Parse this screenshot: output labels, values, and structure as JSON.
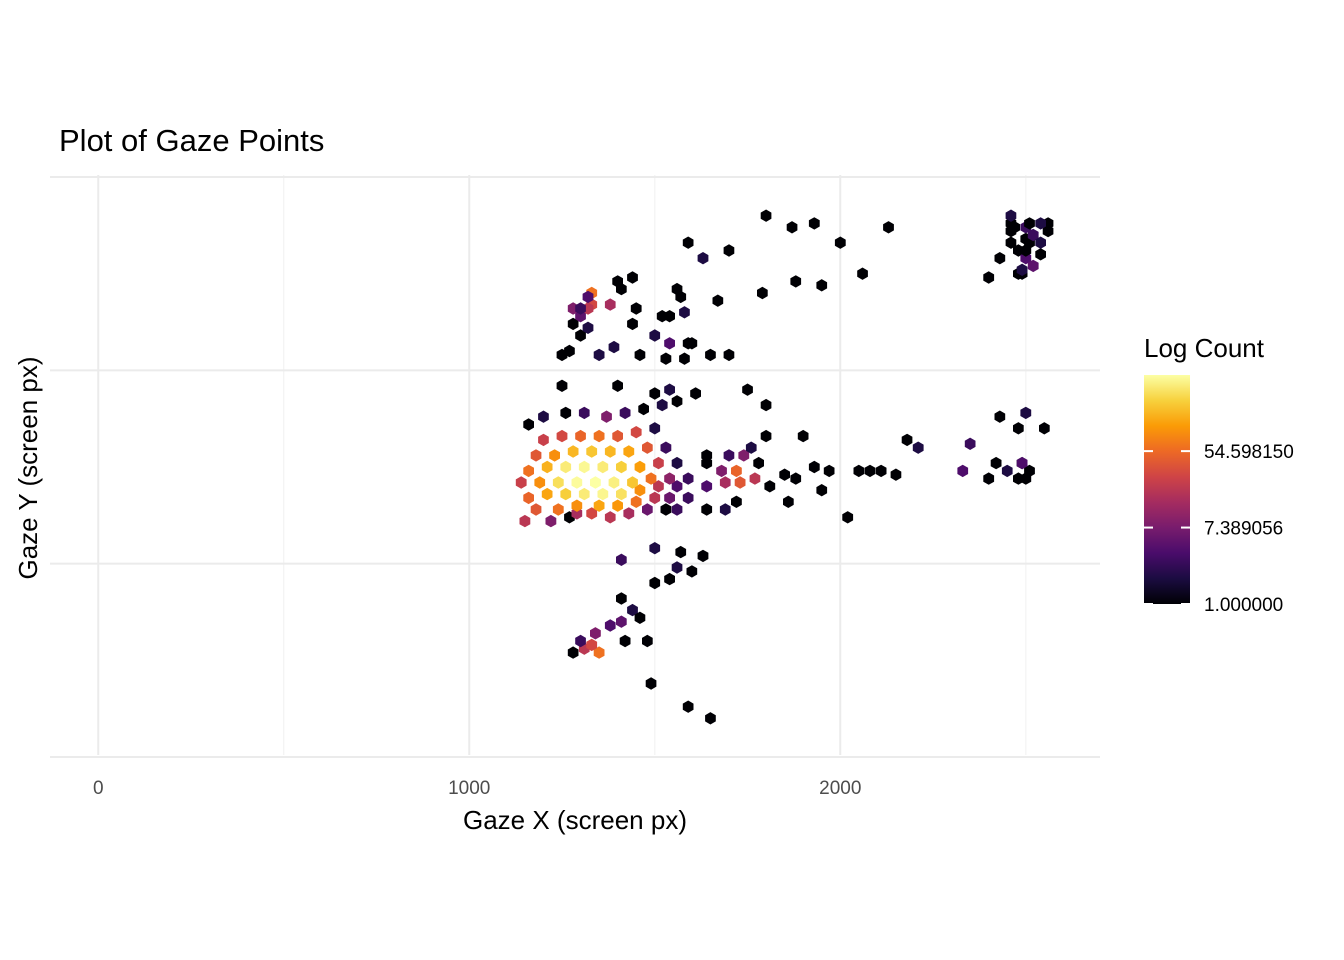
{
  "chart_data": {
    "type": "heatmap",
    "subtype": "hexbin",
    "title": "Plot of Gaze Points",
    "xlabel": "Gaze X (screen px)",
    "ylabel": "Gaze Y (screen px)",
    "xlim": [
      -130,
      2700
    ],
    "ylim": [
      0,
      1500
    ],
    "x_ticks": [
      0,
      1000,
      2000
    ],
    "x_tick_labels": [
      "0",
      "1000",
      "2000"
    ],
    "y_ticks": [
      0,
      500,
      1000,
      1500
    ],
    "y_tick_labels": [
      "",
      "",
      "",
      ""
    ],
    "grid": true,
    "legend": {
      "title": "Log Count",
      "position": "right",
      "scale": "log",
      "colormap": "inferno",
      "range": [
        1,
        400
      ],
      "breaks": [
        1.0,
        7.389056,
        54.59815
      ],
      "labels": [
        "1.000000",
        "7.389056",
        "54.598150"
      ]
    },
    "colors": {
      "gradient": [
        "#000004",
        "#1b0c41",
        "#4a0c6b",
        "#781c6d",
        "#a52c60",
        "#cf4446",
        "#ed6925",
        "#fb9b06",
        "#f7d13d",
        "#fcffa4"
      ]
    },
    "points": [
      [
        1350,
        1230,
        60
      ],
      [
        1310,
        1220,
        20
      ],
      [
        1330,
        1210,
        30
      ],
      [
        1280,
        1230,
        1
      ],
      [
        1340,
        1180,
        8
      ],
      [
        1300,
        1200,
        3
      ],
      [
        1410,
        1150,
        5
      ],
      [
        1380,
        1160,
        4
      ],
      [
        1440,
        1120,
        2
      ],
      [
        1410,
        1090,
        1
      ],
      [
        1590,
        1370,
        1
      ],
      [
        1650,
        1400,
        1
      ],
      [
        1490,
        1310,
        1
      ],
      [
        1420,
        1200,
        1
      ],
      [
        1480,
        1200,
        1
      ],
      [
        1460,
        1140,
        1
      ],
      [
        1500,
        1050,
        1
      ],
      [
        1540,
        1040,
        1
      ],
      [
        1560,
        1010,
        2
      ],
      [
        1600,
        1020,
        1
      ],
      [
        1630,
        980,
        1
      ],
      [
        1570,
        970,
        1
      ],
      [
        1410,
        990,
        3
      ],
      [
        1500,
        960,
        2
      ],
      [
        1150,
        890,
        20
      ],
      [
        1220,
        890,
        8
      ],
      [
        1270,
        880,
        1
      ],
      [
        1290,
        870,
        15
      ],
      [
        1330,
        870,
        30
      ],
      [
        1380,
        880,
        20
      ],
      [
        1430,
        870,
        15
      ],
      [
        1480,
        860,
        6
      ],
      [
        1530,
        860,
        1
      ],
      [
        1560,
        860,
        3
      ],
      [
        1180,
        860,
        40
      ],
      [
        1240,
        860,
        60
      ],
      [
        1290,
        850,
        90
      ],
      [
        1350,
        850,
        120
      ],
      [
        1400,
        850,
        100
      ],
      [
        1450,
        840,
        60
      ],
      [
        1500,
        830,
        20
      ],
      [
        1540,
        830,
        6
      ],
      [
        1590,
        830,
        3
      ],
      [
        1160,
        830,
        50
      ],
      [
        1210,
        820,
        120
      ],
      [
        1260,
        820,
        200
      ],
      [
        1310,
        820,
        300
      ],
      [
        1360,
        820,
        350
      ],
      [
        1410,
        820,
        260
      ],
      [
        1460,
        810,
        90
      ],
      [
        1510,
        800,
        20
      ],
      [
        1560,
        800,
        4
      ],
      [
        1140,
        790,
        25
      ],
      [
        1190,
        790,
        90
      ],
      [
        1240,
        790,
        250
      ],
      [
        1290,
        790,
        380
      ],
      [
        1340,
        790,
        400
      ],
      [
        1390,
        790,
        320
      ],
      [
        1440,
        790,
        180
      ],
      [
        1490,
        780,
        60
      ],
      [
        1540,
        780,
        10
      ],
      [
        1590,
        780,
        3
      ],
      [
        1160,
        760,
        60
      ],
      [
        1210,
        750,
        140
      ],
      [
        1260,
        750,
        300
      ],
      [
        1310,
        750,
        360
      ],
      [
        1360,
        750,
        300
      ],
      [
        1410,
        750,
        200
      ],
      [
        1460,
        750,
        110
      ],
      [
        1510,
        740,
        25
      ],
      [
        1560,
        740,
        2
      ],
      [
        1180,
        720,
        40
      ],
      [
        1230,
        720,
        90
      ],
      [
        1280,
        710,
        150
      ],
      [
        1330,
        710,
        180
      ],
      [
        1380,
        710,
        150
      ],
      [
        1430,
        710,
        120
      ],
      [
        1480,
        700,
        40
      ],
      [
        1530,
        700,
        3
      ],
      [
        1200,
        680,
        25
      ],
      [
        1250,
        670,
        30
      ],
      [
        1300,
        670,
        50
      ],
      [
        1350,
        670,
        60
      ],
      [
        1400,
        670,
        40
      ],
      [
        1450,
        660,
        30
      ],
      [
        1500,
        650,
        2
      ],
      [
        1160,
        640,
        1
      ],
      [
        1200,
        620,
        2
      ],
      [
        1260,
        610,
        1
      ],
      [
        1310,
        610,
        3
      ],
      [
        1370,
        620,
        8
      ],
      [
        1420,
        610,
        3
      ],
      [
        1470,
        600,
        1
      ],
      [
        1520,
        590,
        2
      ],
      [
        1560,
        580,
        1
      ],
      [
        1500,
        560,
        1
      ],
      [
        1540,
        550,
        2
      ],
      [
        1250,
        540,
        1
      ],
      [
        1400,
        540,
        1
      ],
      [
        1610,
        560,
        1
      ],
      [
        1640,
        800,
        4
      ],
      [
        1690,
        790,
        15
      ],
      [
        1730,
        790,
        40
      ],
      [
        1770,
        780,
        20
      ],
      [
        1720,
        760,
        50
      ],
      [
        1680,
        760,
        8
      ],
      [
        1640,
        740,
        1
      ],
      [
        1700,
        720,
        3
      ],
      [
        1740,
        720,
        8
      ],
      [
        1780,
        740,
        1
      ],
      [
        1760,
        700,
        2
      ],
      [
        1800,
        670,
        1
      ],
      [
        1640,
        860,
        1
      ],
      [
        1690,
        860,
        2
      ],
      [
        1720,
        840,
        1
      ],
      [
        1640,
        720,
        1
      ],
      [
        1810,
        800,
        1
      ],
      [
        1860,
        840,
        1
      ],
      [
        1850,
        770,
        1
      ],
      [
        1880,
        780,
        1
      ],
      [
        1800,
        590,
        1
      ],
      [
        1750,
        550,
        1
      ],
      [
        1930,
        750,
        1
      ],
      [
        1970,
        760,
        1
      ],
      [
        1900,
        670,
        1
      ],
      [
        1950,
        810,
        1
      ],
      [
        2020,
        880,
        1
      ],
      [
        2050,
        760,
        1
      ],
      [
        2080,
        760,
        1
      ],
      [
        2110,
        760,
        1
      ],
      [
        2180,
        680,
        1
      ],
      [
        2210,
        700,
        2
      ],
      [
        2150,
        770,
        1
      ],
      [
        2350,
        690,
        3
      ],
      [
        2330,
        760,
        4
      ],
      [
        2400,
        780,
        1
      ],
      [
        2450,
        760,
        2
      ],
      [
        2490,
        740,
        1
      ],
      [
        2510,
        760,
        1
      ],
      [
        2490,
        740,
        4
      ],
      [
        2420,
        740,
        1
      ],
      [
        2480,
        780,
        1
      ],
      [
        2500,
        780,
        1
      ],
      [
        2550,
        650,
        1
      ],
      [
        2500,
        610,
        2
      ],
      [
        2430,
        620,
        1
      ],
      [
        2480,
        650,
        1
      ],
      [
        1270,
        450,
        1
      ],
      [
        1300,
        410,
        1
      ],
      [
        1320,
        390,
        2
      ],
      [
        1280,
        380,
        1
      ],
      [
        1300,
        360,
        5
      ],
      [
        1280,
        340,
        8
      ],
      [
        1330,
        330,
        30
      ],
      [
        1320,
        340,
        20
      ],
      [
        1330,
        300,
        60
      ],
      [
        1380,
        330,
        15
      ],
      [
        1300,
        340,
        3
      ],
      [
        1320,
        310,
        4
      ],
      [
        1410,
        290,
        1
      ],
      [
        1450,
        340,
        1
      ],
      [
        1580,
        470,
        1
      ],
      [
        1540,
        430,
        4
      ],
      [
        1500,
        410,
        2
      ],
      [
        1440,
        380,
        1
      ],
      [
        1540,
        360,
        1
      ],
      [
        1560,
        290,
        1
      ],
      [
        1570,
        310,
        1
      ],
      [
        1670,
        320,
        1
      ],
      [
        1700,
        460,
        1
      ],
      [
        1700,
        190,
        1
      ],
      [
        1590,
        170,
        1
      ],
      [
        1630,
        210,
        2
      ],
      [
        1880,
        270,
        1
      ],
      [
        1790,
        300,
        1
      ],
      [
        1950,
        280,
        1
      ],
      [
        1930,
        120,
        1
      ],
      [
        1870,
        130,
        1
      ],
      [
        1800,
        100,
        1
      ],
      [
        1400,
        270,
        1
      ],
      [
        1440,
        260,
        1
      ],
      [
        1580,
        350,
        2
      ],
      [
        1520,
        360,
        1
      ],
      [
        2460,
        120,
        1
      ],
      [
        2460,
        100,
        2
      ],
      [
        2460,
        140,
        1
      ],
      [
        2470,
        130,
        1
      ],
      [
        2480,
        190,
        1
      ],
      [
        2510,
        170,
        1
      ],
      [
        2540,
        200,
        1
      ],
      [
        2460,
        170,
        1
      ],
      [
        2500,
        210,
        4
      ],
      [
        2520,
        230,
        5
      ],
      [
        2490,
        250,
        1
      ],
      [
        2480,
        250,
        1
      ],
      [
        2490,
        240,
        2
      ],
      [
        2560,
        120,
        1
      ],
      [
        2500,
        160,
        1
      ],
      [
        2560,
        140,
        1
      ],
      [
        2400,
        260,
        1
      ],
      [
        2520,
        150,
        3
      ],
      [
        2540,
        170,
        2
      ],
      [
        2130,
        130,
        1
      ],
      [
        2000,
        170,
        1
      ],
      [
        2060,
        250,
        1
      ],
      [
        2500,
        130,
        3
      ],
      [
        2540,
        120,
        2
      ],
      [
        2430,
        210,
        1
      ],
      [
        2510,
        120,
        1
      ],
      [
        2500,
        190,
        1
      ],
      [
        1250,
        460,
        1
      ],
      [
        1350,
        460,
        2
      ],
      [
        1390,
        440,
        2
      ],
      [
        1460,
        460,
        1
      ],
      [
        1530,
        470,
        1
      ],
      [
        1600,
        430,
        1
      ],
      [
        1650,
        460,
        1
      ],
      [
        1590,
        430,
        1
      ]
    ]
  }
}
